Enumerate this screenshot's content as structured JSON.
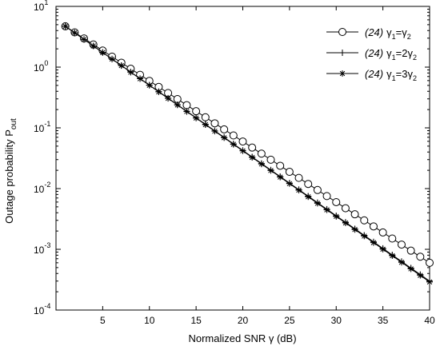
{
  "chart_data": {
    "type": "line",
    "title": "",
    "xlabel": "Normalized SNR γ (dB)",
    "ylabel": "Outage probability P",
    "ylabel_subscript": "out",
    "xlim": [
      0,
      40
    ],
    "ylim": [
      0.0001,
      10
    ],
    "yscale": "log",
    "grid": false,
    "legend_position": "top-right",
    "x_ticks": [
      5,
      10,
      15,
      20,
      25,
      30,
      35,
      40
    ],
    "y_ticks": [
      {
        "base": "10",
        "exp": "-4",
        "value": 0.0001
      },
      {
        "base": "10",
        "exp": "-3",
        "value": 0.001
      },
      {
        "base": "10",
        "exp": "-2",
        "value": 0.01
      },
      {
        "base": "10",
        "exp": "-1",
        "value": 0.1
      },
      {
        "base": "10",
        "exp": "0",
        "value": 1
      },
      {
        "base": "10",
        "exp": "1",
        "value": 10
      }
    ],
    "series": [
      {
        "name": "(24) γ1=γ2",
        "legend": {
          "prefix": "(24)",
          "g": "γ",
          "s1": "1",
          "mid": "=",
          "s2": "2"
        },
        "marker": "circle",
        "x_start": 1,
        "x_end": 40,
        "x_step": 1,
        "y_start": 4.7,
        "y_end": 0.0006
      },
      {
        "name": "(24) γ1=2γ2",
        "legend": {
          "prefix": "(24)",
          "g": "γ",
          "s1": "1",
          "mid": "=2",
          "s2": "2"
        },
        "marker": "plus",
        "x_start": 1,
        "x_end": 40,
        "x_step": 1,
        "y_start": 4.7,
        "y_end": 0.0003
      },
      {
        "name": "(24) γ1=3γ2",
        "legend": {
          "prefix": "(24)",
          "g": "γ",
          "s1": "1",
          "mid": "=3",
          "s2": "2"
        },
        "marker": "asterisk",
        "x_start": 1,
        "x_end": 40,
        "x_step": 1,
        "y_start": 4.7,
        "y_end": 0.00029
      }
    ]
  },
  "colors": {
    "axis": "#000000",
    "line": "#000000",
    "background": "#ffffff"
  }
}
